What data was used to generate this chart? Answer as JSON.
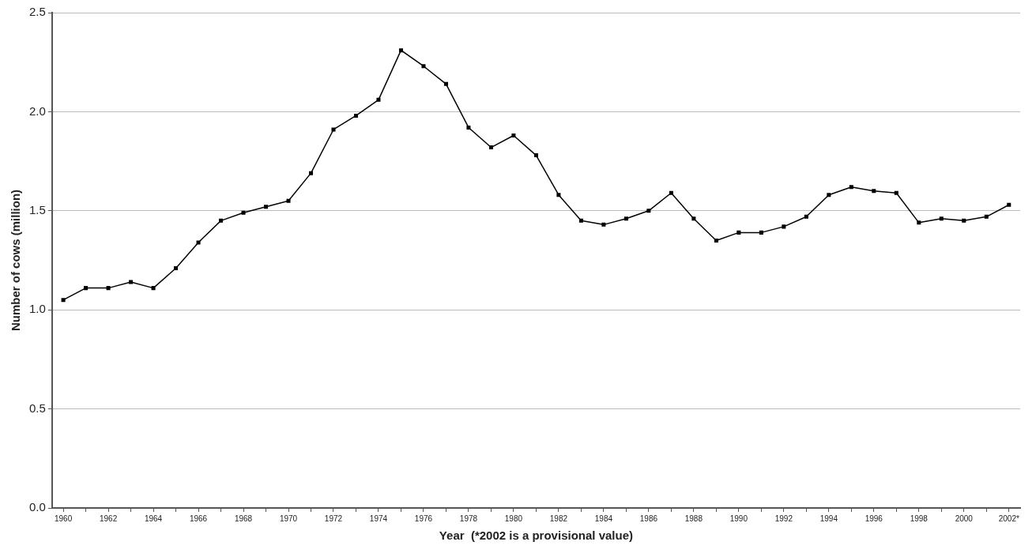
{
  "chart_data": {
    "type": "line",
    "xlabel": "Year  (*2002 is a provisional value)",
    "ylabel": "Number of cows (million)",
    "categories": [
      "1960",
      null,
      "1962",
      null,
      "1964",
      null,
      "1966",
      null,
      "1968",
      null,
      "1970",
      null,
      "1972",
      null,
      "1974",
      null,
      "1976",
      null,
      "1978",
      null,
      "1980",
      null,
      "1982",
      null,
      "1984",
      null,
      "1986",
      null,
      "1988",
      null,
      "1990",
      null,
      "1992",
      null,
      "1994",
      null,
      "1996",
      null,
      "1998",
      null,
      "2000",
      null,
      "2002*"
    ],
    "series": [
      {
        "color": "#000000",
        "values": [
          1.05,
          1.11,
          1.11,
          1.14,
          1.11,
          1.21,
          1.34,
          1.45,
          1.49,
          1.52,
          1.55,
          1.69,
          1.91,
          1.98,
          2.06,
          2.31,
          2.23,
          2.14,
          1.92,
          1.82,
          1.88,
          1.78,
          1.58,
          1.45,
          1.43,
          1.46,
          1.5,
          1.59,
          1.46,
          1.35,
          1.39,
          1.39,
          1.42,
          1.47,
          1.58,
          1.62,
          1.6,
          1.59,
          1.44,
          1.46,
          1.45,
          1.47,
          1.53
        ]
      }
    ],
    "ylim": [
      0,
      2.5
    ],
    "yticks": [
      {
        "value": 0,
        "label": "0.0"
      },
      {
        "value": 0.5,
        "label": "0.5"
      },
      {
        "value": 1,
        "label": "1.0"
      },
      {
        "value": 1.5,
        "label": "1.5"
      },
      {
        "value": 2,
        "label": "2.0"
      },
      {
        "value": 2.5,
        "label": "2.5"
      }
    ],
    "grid": "y",
    "legend": false,
    "marker": "square",
    "line_style": "solid"
  }
}
